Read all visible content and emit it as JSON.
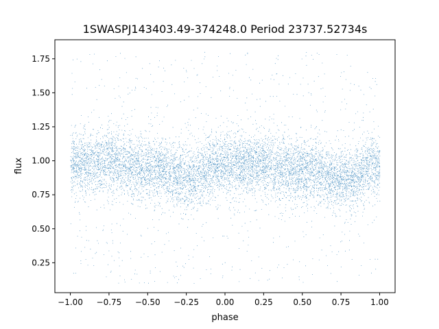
{
  "chart_data": {
    "type": "scatter",
    "title": "1SWASPJ143403.49-374248.0 Period 23737.52734s",
    "xlabel": "phase",
    "ylabel": "flux",
    "xlim": [
      -1.1,
      1.1
    ],
    "ylim": [
      0.03,
      1.89
    ],
    "xticks": [
      -1.0,
      -0.75,
      -0.5,
      -0.25,
      0.0,
      0.25,
      0.5,
      0.75,
      1.0
    ],
    "xtick_labels": [
      "−1.00",
      "−0.75",
      "−0.50",
      "−0.25",
      "0.00",
      "0.25",
      "0.50",
      "0.75",
      "1.00"
    ],
    "yticks": [
      0.25,
      0.5,
      0.75,
      1.0,
      1.25,
      1.5,
      1.75
    ],
    "ytick_labels": [
      "0.25",
      "0.50",
      "0.75",
      "1.00",
      "1.25",
      "1.50",
      "1.75"
    ],
    "grid": false,
    "point_color": "#1f77b4",
    "x_range_of_points": [
      -1.0,
      1.0
    ],
    "y_range_of_points": [
      0.1,
      1.8
    ],
    "trend": [
      {
        "x": -1.0,
        "y": 0.98
      },
      {
        "x": -0.75,
        "y": 1.0
      },
      {
        "x": -0.5,
        "y": 0.95
      },
      {
        "x": -0.25,
        "y": 0.88
      },
      {
        "x": 0.0,
        "y": 0.98
      },
      {
        "x": 0.25,
        "y": 0.97
      },
      {
        "x": 0.5,
        "y": 0.93
      },
      {
        "x": 0.75,
        "y": 0.87
      },
      {
        "x": 1.0,
        "y": 0.96
      }
    ]
  }
}
